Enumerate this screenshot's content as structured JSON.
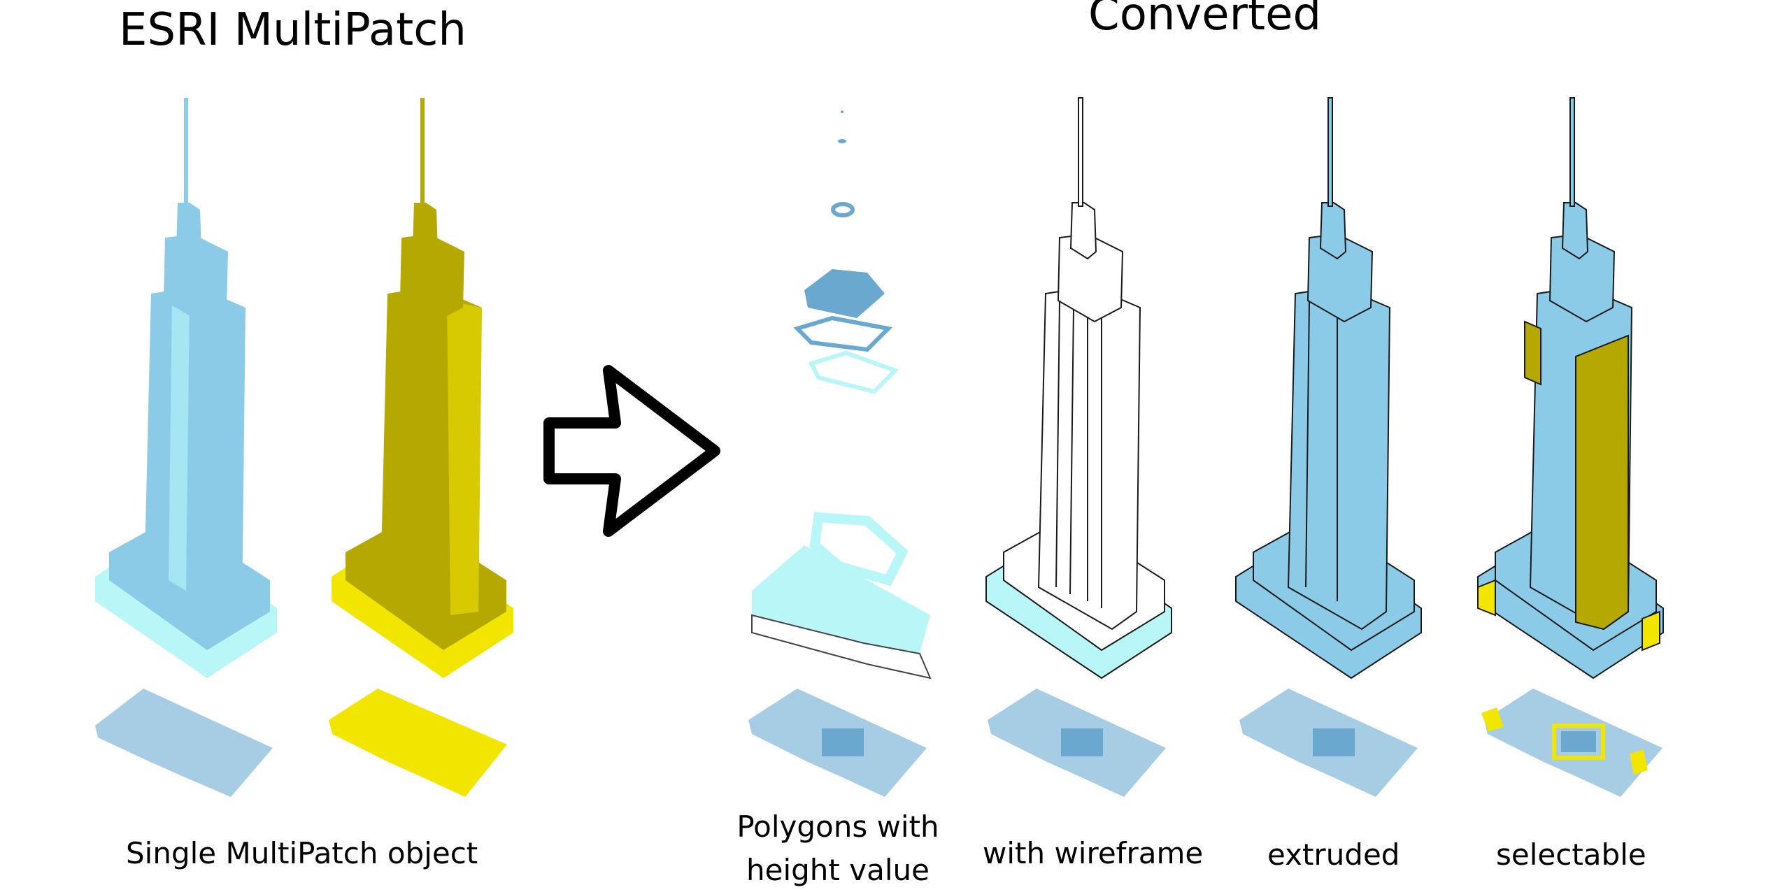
{
  "titles": {
    "left": "ESRI MultiPatch",
    "right": "Converted"
  },
  "captions": {
    "multipatch": "Single MultiPatch object",
    "polygons_line1": "Polygons with",
    "polygons_line2": "height value",
    "wireframe": "with wireframe",
    "extruded": "extruded",
    "selectable": "selectable"
  },
  "colors": {
    "light_blue": "#8ccbe8",
    "cyan": "#b8f6f8",
    "steel_blue": "#6aa8cf",
    "yellow": "#f2e600",
    "olive": "#b5a800",
    "footprint": "#a6cde3",
    "outline": "#1a1a1a"
  },
  "figures": [
    {
      "id": "multipatch-blue",
      "style": "solid-blue"
    },
    {
      "id": "multipatch-yellow",
      "style": "solid-yellow"
    },
    {
      "id": "polygons",
      "style": "exploded-polygons"
    },
    {
      "id": "wireframe",
      "style": "wireframe"
    },
    {
      "id": "extruded",
      "style": "extruded"
    },
    {
      "id": "selectable",
      "style": "selectable"
    }
  ],
  "arrow": {
    "icon": "right-arrow-icon"
  }
}
